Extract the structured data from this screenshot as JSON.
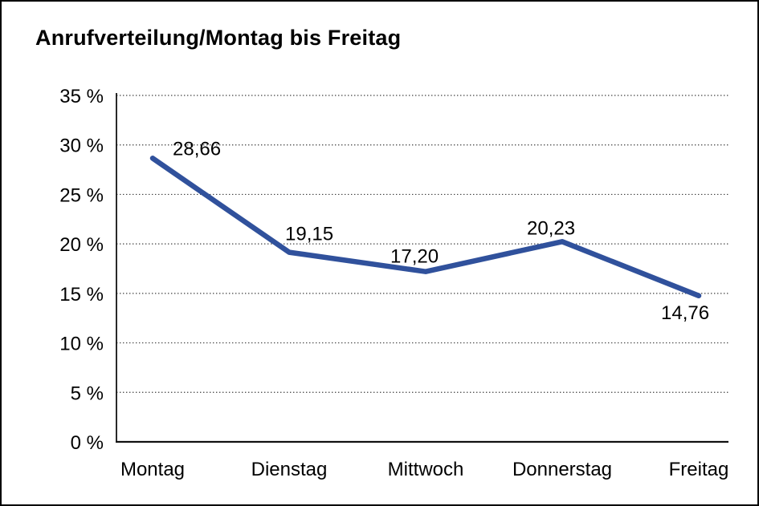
{
  "window": {
    "background": "#ffffff",
    "border_color": "#000000"
  },
  "chart_data": {
    "type": "line",
    "title": "Anrufverteilung/Montag bis Freitag",
    "categories": [
      "Montag",
      "Dienstag",
      "Mittwoch",
      "Donnerstag",
      "Freitag"
    ],
    "values": [
      28.66,
      19.15,
      17.2,
      20.23,
      14.76
    ],
    "data_labels": [
      "28,66",
      "19,15",
      "17,20",
      "20,23",
      "14,76"
    ],
    "y_axis": {
      "tick_labels": [
        "35 %",
        "30 %",
        "25 %",
        "20 %",
        "15 %",
        "10 %",
        "5 %",
        "0 %"
      ],
      "tick_values": [
        35,
        30,
        25,
        20,
        15,
        10,
        5,
        0
      ],
      "min": 0,
      "max": 35,
      "step": 5
    },
    "xlabel": "",
    "ylabel": "",
    "grid": "horizontal-dotted",
    "legend": "none",
    "colors": {
      "line": "#30519C",
      "text": "#000000",
      "axis": "#111111",
      "grid_dots": "#3d3d3d",
      "background": "#ffffff",
      "border": "#000000"
    }
  }
}
